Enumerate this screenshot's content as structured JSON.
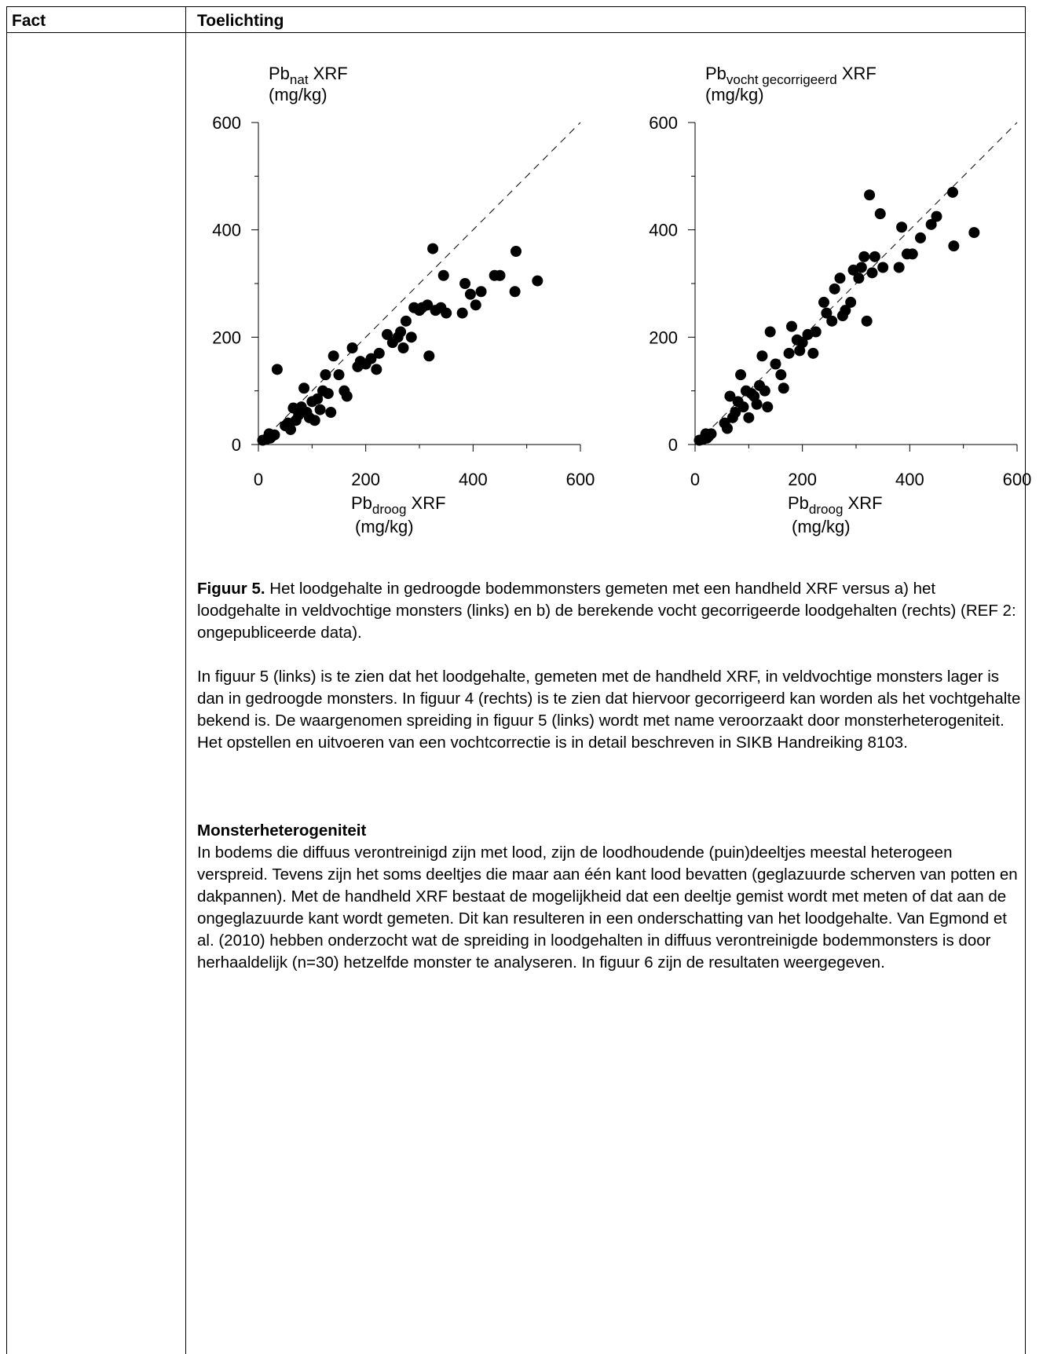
{
  "table": {
    "col1_header": "Fact",
    "col2_header": "Toelichting"
  },
  "chart_data": [
    {
      "type": "scatter",
      "ylabel_main": "Pb",
      "ylabel_sub": "nat",
      "ylabel_suffix": "XRF",
      "ylabel_unit": "(mg/kg)",
      "xlabel_main": "Pb",
      "xlabel_sub": "droog",
      "xlabel_suffix": "XRF",
      "xlabel_unit": "(mg/kg)",
      "xlim": [
        0,
        600
      ],
      "ylim": [
        0,
        600
      ],
      "xticks": [
        "0",
        "200",
        "400",
        "600"
      ],
      "yticks": [
        "0",
        "200",
        "400",
        "600"
      ],
      "reference_line": "1:1 dashed",
      "points": [
        [
          8,
          8
        ],
        [
          15,
          10
        ],
        [
          20,
          20
        ],
        [
          25,
          15
        ],
        [
          30,
          18
        ],
        [
          22,
          12
        ],
        [
          35,
          140
        ],
        [
          50,
          35
        ],
        [
          55,
          40
        ],
        [
          60,
          28
        ],
        [
          65,
          68
        ],
        [
          70,
          45
        ],
        [
          75,
          55
        ],
        [
          80,
          70
        ],
        [
          85,
          105
        ],
        [
          90,
          60
        ],
        [
          95,
          50
        ],
        [
          100,
          80
        ],
        [
          105,
          45
        ],
        [
          110,
          85
        ],
        [
          115,
          65
        ],
        [
          120,
          100
        ],
        [
          125,
          130
        ],
        [
          130,
          95
        ],
        [
          135,
          60
        ],
        [
          140,
          165
        ],
        [
          150,
          130
        ],
        [
          160,
          100
        ],
        [
          165,
          90
        ],
        [
          175,
          180
        ],
        [
          185,
          145
        ],
        [
          190,
          155
        ],
        [
          200,
          150
        ],
        [
          210,
          160
        ],
        [
          220,
          140
        ],
        [
          225,
          170
        ],
        [
          240,
          205
        ],
        [
          250,
          190
        ],
        [
          260,
          200
        ],
        [
          265,
          210
        ],
        [
          270,
          180
        ],
        [
          275,
          230
        ],
        [
          285,
          200
        ],
        [
          290,
          255
        ],
        [
          300,
          250
        ],
        [
          305,
          255
        ],
        [
          315,
          260
        ],
        [
          318,
          165
        ],
        [
          325,
          365
        ],
        [
          330,
          250
        ],
        [
          340,
          255
        ],
        [
          345,
          315
        ],
        [
          350,
          245
        ],
        [
          380,
          245
        ],
        [
          385,
          300
        ],
        [
          395,
          280
        ],
        [
          405,
          260
        ],
        [
          415,
          285
        ],
        [
          440,
          315
        ],
        [
          450,
          315
        ],
        [
          478,
          285
        ],
        [
          480,
          360
        ],
        [
          520,
          305
        ]
      ]
    },
    {
      "type": "scatter",
      "ylabel_main": "Pb",
      "ylabel_sub": "vocht gecorrigeerd",
      "ylabel_suffix": "XRF",
      "ylabel_unit": "(mg/kg)",
      "xlabel_main": "Pb",
      "xlabel_sub": "droog",
      "xlabel_suffix": "XRF",
      "xlabel_unit": "(mg/kg)",
      "xlim": [
        0,
        600
      ],
      "ylim": [
        0,
        600
      ],
      "xticks": [
        "0",
        "200",
        "400",
        "600"
      ],
      "yticks": [
        "0",
        "200",
        "400",
        "600"
      ],
      "reference_line": "1:1 dashed",
      "points": [
        [
          8,
          8
        ],
        [
          15,
          10
        ],
        [
          20,
          20
        ],
        [
          25,
          15
        ],
        [
          30,
          20
        ],
        [
          22,
          12
        ],
        [
          55,
          40
        ],
        [
          60,
          30
        ],
        [
          65,
          90
        ],
        [
          70,
          50
        ],
        [
          75,
          60
        ],
        [
          80,
          80
        ],
        [
          85,
          130
        ],
        [
          90,
          70
        ],
        [
          95,
          100
        ],
        [
          100,
          50
        ],
        [
          105,
          95
        ],
        [
          110,
          90
        ],
        [
          115,
          75
        ],
        [
          120,
          110
        ],
        [
          125,
          165
        ],
        [
          130,
          100
        ],
        [
          135,
          70
        ],
        [
          140,
          210
        ],
        [
          150,
          150
        ],
        [
          160,
          130
        ],
        [
          165,
          105
        ],
        [
          175,
          170
        ],
        [
          180,
          220
        ],
        [
          190,
          195
        ],
        [
          195,
          175
        ],
        [
          200,
          190
        ],
        [
          210,
          205
        ],
        [
          220,
          170
        ],
        [
          225,
          210
        ],
        [
          240,
          265
        ],
        [
          245,
          245
        ],
        [
          255,
          230
        ],
        [
          260,
          290
        ],
        [
          270,
          310
        ],
        [
          275,
          240
        ],
        [
          280,
          250
        ],
        [
          290,
          265
        ],
        [
          295,
          325
        ],
        [
          305,
          310
        ],
        [
          310,
          330
        ],
        [
          315,
          350
        ],
        [
          320,
          230
        ],
        [
          325,
          465
        ],
        [
          330,
          320
        ],
        [
          335,
          350
        ],
        [
          345,
          430
        ],
        [
          350,
          330
        ],
        [
          380,
          330
        ],
        [
          385,
          405
        ],
        [
          395,
          355
        ],
        [
          405,
          355
        ],
        [
          420,
          385
        ],
        [
          440,
          410
        ],
        [
          450,
          425
        ],
        [
          480,
          470
        ],
        [
          482,
          370
        ],
        [
          520,
          395
        ]
      ]
    }
  ],
  "figure": {
    "label": "Figuur 5.",
    "caption": " Het loodgehalte in gedroogde bodemmonsters gemeten met een handheld XRF versus a) het loodgehalte in veldvochtige monsters (links) en b) de berekende vocht gecorrigeerde loodgehalten (rechts) (REF 2: ongepubliceerde data)."
  },
  "body": {
    "paragraph1": "In figuur 5 (links) is te zien dat het loodgehalte, gemeten met de handheld XRF, in veldvochtige monsters lager is dan in gedroogde monsters. In figuur 4 (rechts) is te zien dat hiervoor gecorrigeerd kan worden als het vochtgehalte bekend is. De waargenomen spreiding in figuur 5 (links) wordt met name veroorzaakt door monsterheterogeniteit. Het opstellen en uitvoeren van een vochtcorrectie is in detail beschreven in SIKB Handreiking 8103.",
    "heading": "Monsterheterogeniteit",
    "paragraph2": "In bodems die diffuus verontreinigd zijn met lood, zijn de loodhoudende (puin)deeltjes meestal heterogeen verspreid. Tevens zijn het soms deeltjes die maar aan één kant lood bevatten (geglazuurde scherven van potten en dakpannen). Met de handheld XRF bestaat de mogelijkheid dat een deeltje gemist wordt met meten of dat aan de ongeglazuurde kant wordt gemeten. Dit kan resulteren in een onderschatting van het loodgehalte. Van Egmond et al. (2010) hebben onderzocht wat de spreiding in loodgehalten in diffuus verontreinigde bodemmonsters is door herhaaldelijk (n=30) hetzelfde monster te analyseren. In figuur 6 zijn de resultaten weergegeven."
  }
}
